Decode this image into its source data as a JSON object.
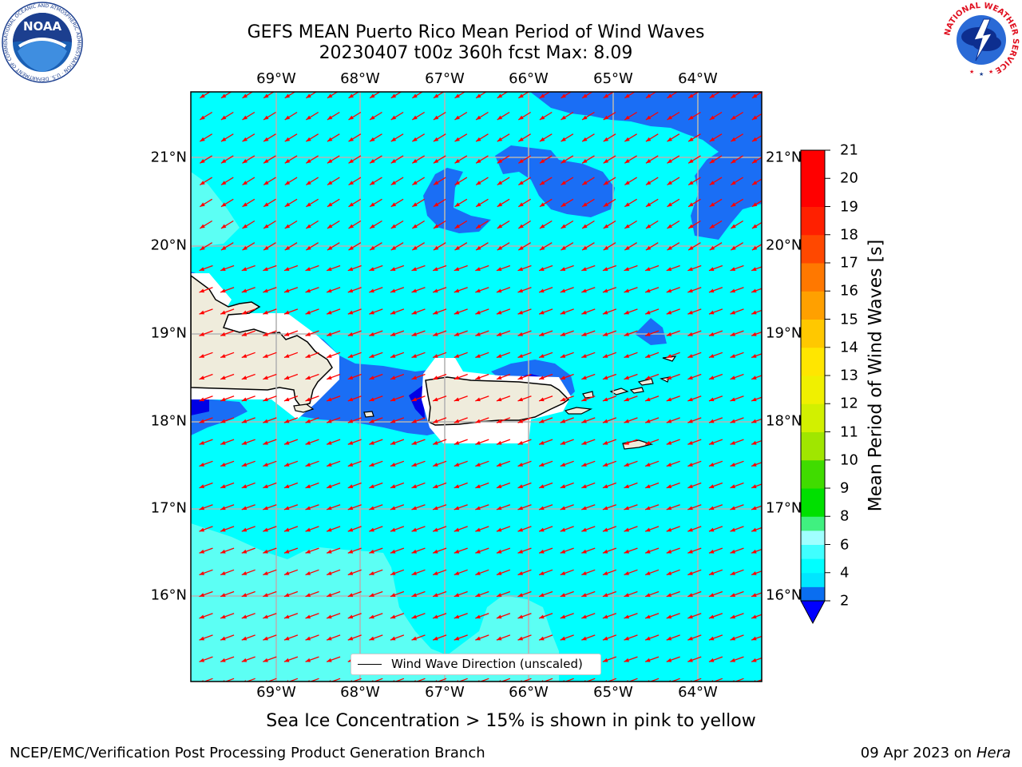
{
  "title": {
    "line1": "GEFS MEAN Puerto Rico Mean Period of Wind Waves",
    "line2": "20230407 t00z 360h fcst   Max: 8.09"
  },
  "axes": {
    "lon_labels": [
      "69°W",
      "68°W",
      "67°W",
      "66°W",
      "65°W",
      "64°W"
    ],
    "lat_labels": [
      "21°N",
      "20°N",
      "19°N",
      "18°N",
      "17°N",
      "16°N"
    ]
  },
  "colorbar": {
    "label": "Mean Period of Wind Waves [s]",
    "ticks": [
      "2",
      "4",
      "6",
      "8",
      "9",
      "10",
      "11",
      "12",
      "13",
      "14",
      "15",
      "16",
      "17",
      "18",
      "19",
      "20",
      "21"
    ],
    "colors": [
      "#0000ff",
      "#0a6ef0",
      "#00e6ff",
      "#00ffff",
      "#40ffff",
      "#a0ffff",
      "#40f080",
      "#00e000",
      "#40dc00",
      "#a0e600",
      "#d2f000",
      "#f0f000",
      "#ffe600",
      "#ffc800",
      "#ffa000",
      "#ff7800",
      "#ff4800",
      "#ff2000",
      "#ff0000"
    ]
  },
  "legend": {
    "label": "Wind Wave Direction (unscaled)"
  },
  "subtitle": "Sea Ice Concentration > 15% is shown in pink to yellow",
  "footer": {
    "left": "NCEP/EMC/Verification Post Processing Product Generation Branch",
    "date": "09 Apr 2023 on ",
    "host": "Hera"
  },
  "logos": {
    "noaa": "NOAA",
    "noaa_ring": "NATIONAL OCEANIC AND ATMOSPHERIC ADMINISTRATION · U.S. DEPARTMENT OF COMMERCE",
    "nws_ring": "NATIONAL WEATHER SERVICE"
  },
  "colors": {
    "ocean": "#00ffff",
    "land": "#efecdc",
    "arrow": "#ff0000",
    "deep": "#1a6ef5"
  }
}
